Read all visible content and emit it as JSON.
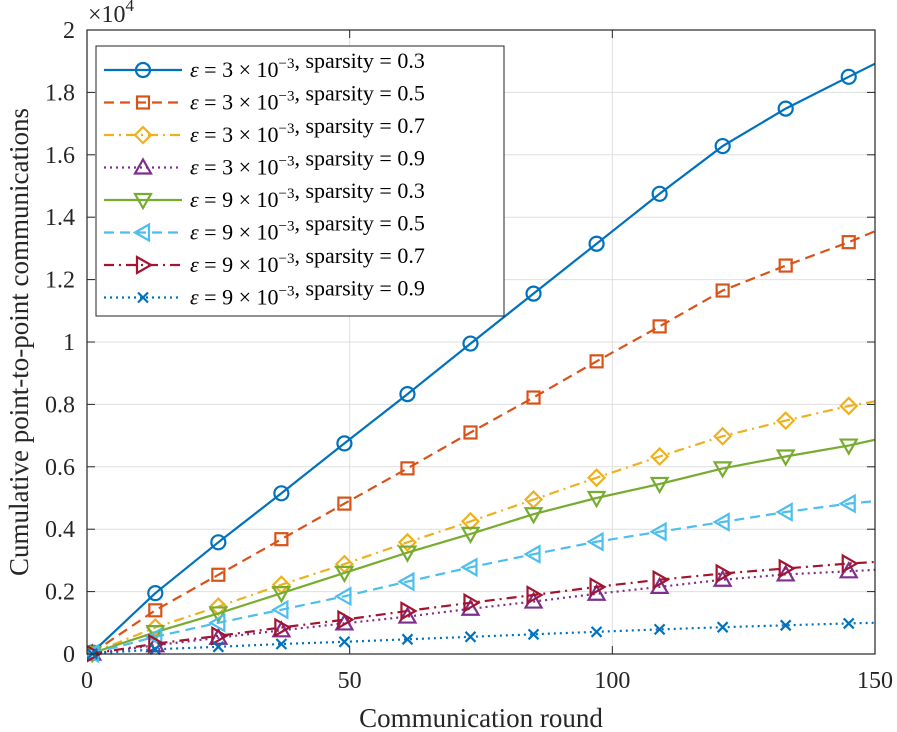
{
  "chart_data": {
    "type": "line",
    "title": "",
    "xlabel": "Communication round",
    "ylabel": "Cumulative point-to-point communications",
    "xlim": [
      0,
      150
    ],
    "ylim": [
      0,
      20000
    ],
    "y_scale_label": "×10^4",
    "x_ticks": [
      0,
      50,
      100,
      150
    ],
    "y_ticks": [
      {
        "value": 0,
        "label": "0"
      },
      {
        "value": 2000,
        "label": "0.2"
      },
      {
        "value": 4000,
        "label": "0.4"
      },
      {
        "value": 6000,
        "label": "0.6"
      },
      {
        "value": 8000,
        "label": "0.8"
      },
      {
        "value": 10000,
        "label": "1"
      },
      {
        "value": 12000,
        "label": "1.2"
      },
      {
        "value": 14000,
        "label": "1.4"
      },
      {
        "value": 16000,
        "label": "1.6"
      },
      {
        "value": 18000,
        "label": "1.8"
      },
      {
        "value": 20000,
        "label": "2"
      }
    ],
    "grid": true,
    "legend_position": "top-left",
    "x": [
      1,
      13,
      25,
      37,
      49,
      61,
      73,
      85,
      97,
      109,
      121,
      133,
      145,
      150
    ],
    "series": [
      {
        "name": "ε = 3 × 10^−3, sparsity = 0.3",
        "eps_base": "3",
        "sparsity": "0.3",
        "color": "#0072BD",
        "dash": "solid",
        "marker": "circle",
        "values": [
          50,
          1950,
          3580,
          5150,
          6750,
          8330,
          9950,
          11550,
          13150,
          14750,
          16280,
          17480,
          18500,
          18920
        ]
      },
      {
        "name": "ε = 3 × 10^−3, sparsity = 0.5",
        "eps_base": "3",
        "sparsity": "0.5",
        "color": "#D95319",
        "dash": "dashed",
        "marker": "square",
        "values": [
          40,
          1400,
          2540,
          3680,
          4820,
          5950,
          7100,
          8220,
          9380,
          10500,
          11650,
          12450,
          13200,
          13550
        ]
      },
      {
        "name": "ε = 3 × 10^−3, sparsity = 0.7",
        "eps_base": "3",
        "sparsity": "0.7",
        "color": "#EDB120",
        "dash": "dashdot",
        "marker": "diamond",
        "values": [
          30,
          850,
          1520,
          2220,
          2880,
          3580,
          4250,
          4950,
          5650,
          6330,
          6980,
          7480,
          7950,
          8100
        ]
      },
      {
        "name": "ε = 3 × 10^−3, sparsity = 0.9",
        "eps_base": "3",
        "sparsity": "0.9",
        "color": "#7E2F8E",
        "dash": "dotted",
        "marker": "triangle-up",
        "values": [
          10,
          280,
          520,
          760,
          980,
          1200,
          1450,
          1680,
          1930,
          2150,
          2380,
          2550,
          2650,
          2700
        ]
      },
      {
        "name": "ε = 9 × 10^−3, sparsity = 0.3",
        "eps_base": "9",
        "sparsity": "0.3",
        "color": "#77AC30",
        "dash": "solid",
        "marker": "triangle-down",
        "values": [
          30,
          700,
          1300,
          1950,
          2600,
          3250,
          3850,
          4480,
          5000,
          5450,
          5950,
          6330,
          6680,
          6870
        ]
      },
      {
        "name": "ε = 9 × 10^−3, sparsity = 0.5",
        "eps_base": "9",
        "sparsity": "0.5",
        "color": "#4DBEEE",
        "dash": "dashed",
        "marker": "triangle-left",
        "values": [
          20,
          550,
          1000,
          1420,
          1850,
          2320,
          2780,
          3200,
          3600,
          3920,
          4230,
          4550,
          4820,
          4900
        ]
      },
      {
        "name": "ε = 9 × 10^−3, sparsity = 0.7",
        "eps_base": "9",
        "sparsity": "0.7",
        "color": "#A2142F",
        "dash": "dashdot",
        "marker": "triangle-right",
        "values": [
          10,
          330,
          580,
          850,
          1100,
          1380,
          1640,
          1890,
          2150,
          2380,
          2580,
          2740,
          2900,
          2950
        ]
      },
      {
        "name": "ε = 9 × 10^−3, sparsity = 0.9",
        "eps_base": "9",
        "sparsity": "0.9",
        "color": "#0072BD",
        "dash": "dotted",
        "marker": "x",
        "values": [
          5,
          150,
          230,
          320,
          390,
          470,
          550,
          630,
          710,
          790,
          860,
          920,
          980,
          1000
        ]
      }
    ]
  }
}
